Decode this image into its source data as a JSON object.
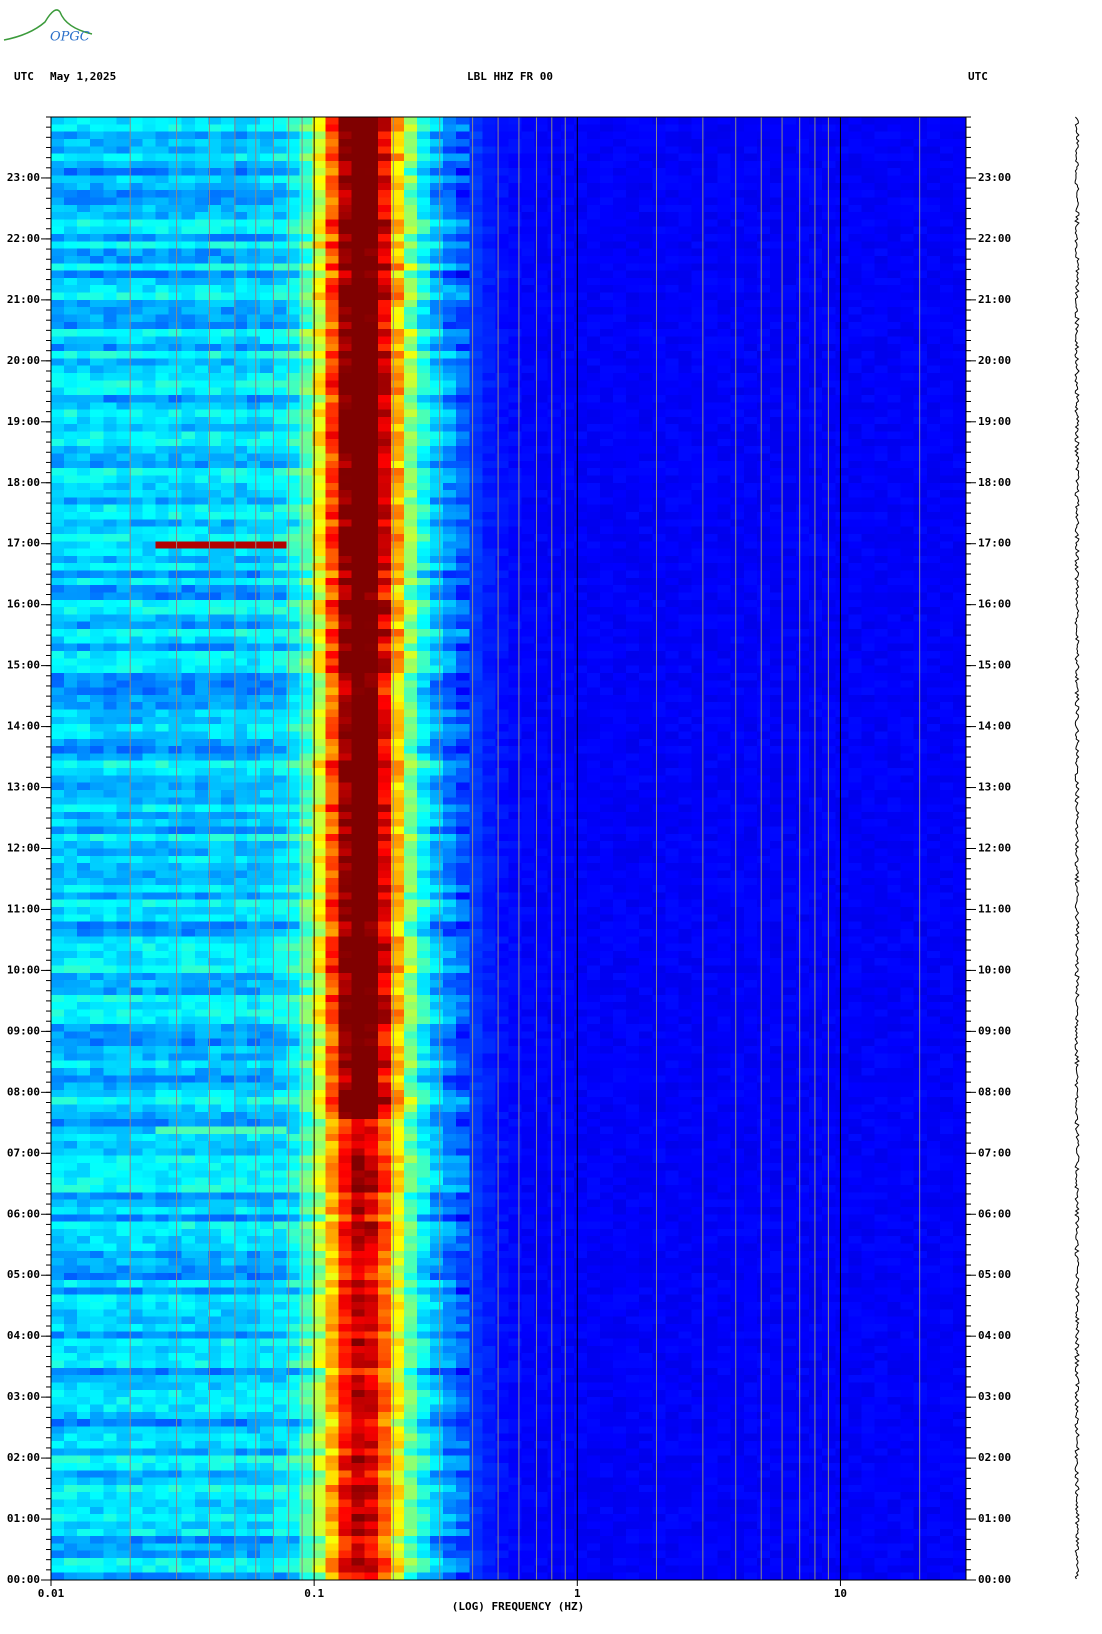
{
  "logo": "OPGC",
  "chart_data": {
    "type": "spectrogram",
    "title": "LBL HHZ FR 00",
    "date_label": "May 1,2025",
    "time_zone_label": "UTC",
    "xlabel": "(LOG) FREQUENCY (HZ)",
    "xscale": "log",
    "xlim": [
      0.01,
      30
    ],
    "xticks": [
      0.01,
      0.1,
      1,
      10
    ],
    "ylim": [
      0,
      24
    ],
    "yticks": [
      {
        "value": 0,
        "label": "00:00"
      },
      {
        "value": 1,
        "label": "01:00"
      },
      {
        "value": 2,
        "label": "02:00"
      },
      {
        "value": 3,
        "label": "03:00"
      },
      {
        "value": 4,
        "label": "04:00"
      },
      {
        "value": 5,
        "label": "05:00"
      },
      {
        "value": 6,
        "label": "06:00"
      },
      {
        "value": 7,
        "label": "07:00"
      },
      {
        "value": 8,
        "label": "08:00"
      },
      {
        "value": 9,
        "label": "09:00"
      },
      {
        "value": 10,
        "label": "10:00"
      },
      {
        "value": 11,
        "label": "11:00"
      },
      {
        "value": 12,
        "label": "12:00"
      },
      {
        "value": 13,
        "label": "13:00"
      },
      {
        "value": 14,
        "label": "14:00"
      },
      {
        "value": 15,
        "label": "15:00"
      },
      {
        "value": 16,
        "label": "16:00"
      },
      {
        "value": 17,
        "label": "17:00"
      },
      {
        "value": 18,
        "label": "18:00"
      },
      {
        "value": 19,
        "label": "19:00"
      },
      {
        "value": 20,
        "label": "20:00"
      },
      {
        "value": 21,
        "label": "21:00"
      },
      {
        "value": 22,
        "label": "22:00"
      },
      {
        "value": 23,
        "label": "23:00"
      }
    ]
  }
}
